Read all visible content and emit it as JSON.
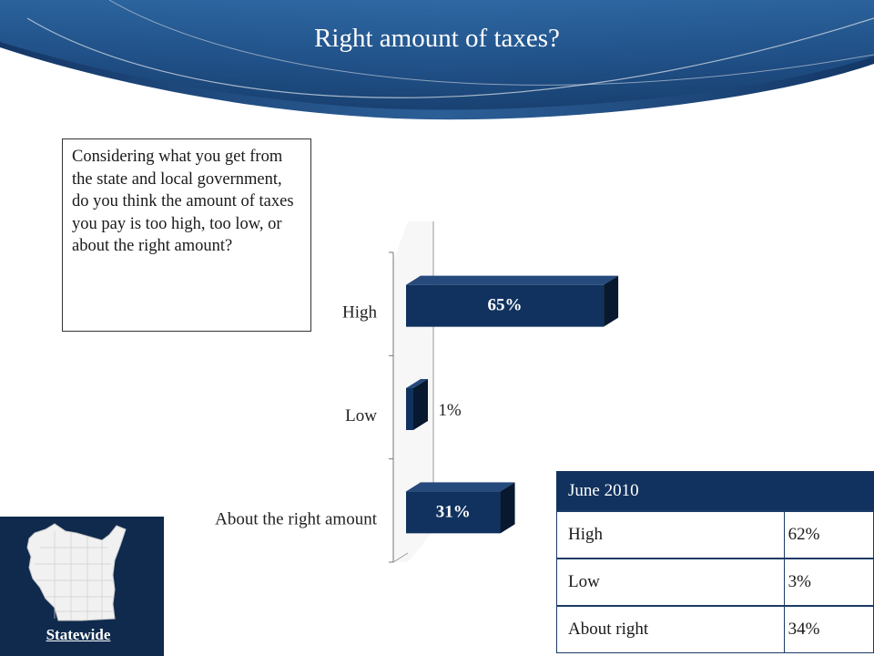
{
  "slide": {
    "title": "Right amount of taxes?",
    "question": "Considering what you get from the state and local government, do you think the amount of taxes you pay is too high, too low, or about the right amount?",
    "region_label": "Statewide"
  },
  "colors": {
    "bar": "#11325e",
    "bar_dark": "#07182f",
    "bar_top": "#264a7c",
    "banner": "#1f4f86"
  },
  "chart_data": {
    "type": "bar",
    "orientation": "horizontal",
    "categories": [
      "High",
      "Low",
      "About the right amount"
    ],
    "values": [
      65,
      1,
      31
    ],
    "data_labels": [
      "65%",
      "1%",
      "31%"
    ],
    "unit": "%",
    "xlim": [
      0,
      100
    ],
    "grid": false,
    "legend": "none"
  },
  "trend_table": {
    "header": "June 2010",
    "rows": [
      {
        "label": "High",
        "value": "62%"
      },
      {
        "label": "Low",
        "value": "3%"
      },
      {
        "label": "About right",
        "value": "34%"
      }
    ]
  }
}
